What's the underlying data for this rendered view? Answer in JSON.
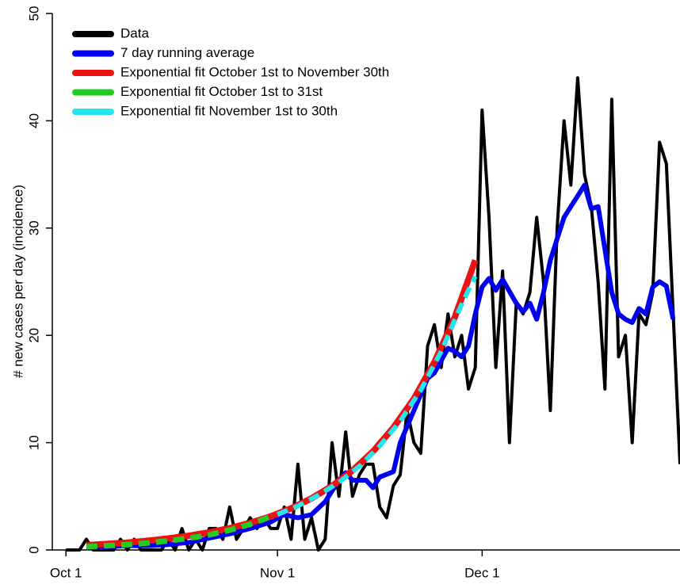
{
  "chart_data": {
    "type": "line",
    "y_label": "# new cases per day (incidence)",
    "xlim": [
      -2,
      90
    ],
    "xticks": [
      {
        "value": 0,
        "label": "Oct 1"
      },
      {
        "value": 31,
        "label": "Nov 1"
      },
      {
        "value": 61,
        "label": "Dec 1"
      }
    ],
    "ylim": [
      0,
      50
    ],
    "yticks": [
      0,
      10,
      20,
      30,
      40,
      50
    ],
    "grid": false,
    "legend": "top-left",
    "series": [
      {
        "name": "Data",
        "color": "#000000",
        "style": "solid",
        "x": [
          0,
          1,
          2,
          3,
          4,
          5,
          6,
          7,
          8,
          9,
          10,
          11,
          12,
          13,
          14,
          15,
          16,
          17,
          18,
          19,
          20,
          21,
          22,
          23,
          24,
          25,
          26,
          27,
          28,
          29,
          30,
          31,
          32,
          33,
          34,
          35,
          36,
          37,
          38,
          39,
          40,
          41,
          42,
          43,
          44,
          45,
          46,
          47,
          48,
          49,
          50,
          51,
          52,
          53,
          54,
          55,
          56,
          57,
          58,
          59,
          60,
          61,
          62,
          63,
          64,
          65,
          66,
          67,
          68,
          69,
          70,
          71,
          72,
          73,
          74,
          75,
          76,
          77,
          78,
          79,
          80,
          81,
          82,
          83,
          84,
          85,
          86,
          87,
          88,
          89,
          90
        ],
        "values": [
          0,
          0,
          0,
          1,
          0,
          0,
          0,
          0,
          1,
          0,
          1,
          0,
          0,
          0,
          0,
          1,
          0,
          2,
          0,
          1,
          0,
          2,
          2,
          1,
          4,
          1,
          2,
          3,
          2,
          3,
          2,
          2,
          4,
          1,
          8,
          1,
          3,
          0,
          1,
          10,
          5,
          11,
          5,
          7,
          8,
          8,
          4,
          3,
          6,
          7,
          13,
          10,
          9,
          19,
          21,
          17,
          22,
          18,
          20,
          15,
          17,
          41,
          31,
          17,
          26,
          10,
          23,
          22,
          24,
          31,
          25,
          13,
          30,
          40,
          34,
          44,
          35,
          32,
          25,
          15,
          42,
          18,
          20,
          10,
          22,
          21,
          24,
          38,
          36,
          22,
          8
        ]
      },
      {
        "name": "7 day running average",
        "color": "#0000ee",
        "style": "solid",
        "x": [
          3,
          6,
          9,
          12,
          15,
          18,
          21,
          24,
          27,
          30,
          32,
          34,
          36,
          38,
          40,
          41,
          42,
          44,
          45,
          46,
          48,
          49,
          51,
          53,
          54,
          56,
          57,
          58,
          59,
          60,
          61,
          62,
          63,
          64,
          66,
          67,
          68,
          69,
          70,
          71,
          72,
          73,
          74,
          75,
          76,
          77,
          78,
          79,
          80,
          81,
          82,
          83,
          84,
          85,
          86,
          87,
          88,
          89
        ],
        "values": [
          0.2,
          0.3,
          0.4,
          0.4,
          0.5,
          0.7,
          1.1,
          1.5,
          2,
          2.6,
          3.3,
          3,
          3.3,
          4.5,
          6.5,
          7.2,
          6.5,
          6.5,
          5.8,
          6.8,
          7.3,
          10,
          13,
          16,
          16.5,
          18.8,
          18.5,
          18,
          19,
          22,
          24.5,
          25.3,
          24.2,
          25.2,
          23,
          22.2,
          23,
          21.5,
          24,
          27,
          29,
          31,
          32,
          33,
          34,
          31.8,
          32,
          28,
          24,
          22,
          21.5,
          21.2,
          22.5,
          22,
          24.5,
          25,
          24.6,
          21.5
        ]
      },
      {
        "name": "Exponential fit October 1st to November 30th",
        "color": "#ee1111",
        "style": "solid",
        "x": [
          3,
          6,
          9,
          12,
          15,
          18,
          21,
          24,
          27,
          30,
          33,
          36,
          39,
          42,
          45,
          48,
          51,
          54,
          57,
          60
        ],
        "values": [
          0.45,
          0.56,
          0.69,
          0.86,
          1.07,
          1.32,
          1.64,
          2.03,
          2.52,
          3.13,
          3.88,
          4.81,
          5.97,
          7.4,
          9.18,
          11.4,
          14.1,
          17.5,
          21.7,
          27
        ]
      },
      {
        "name": "Exponential fit October 1st to 31st",
        "color": "#22cc22",
        "style": "dashed",
        "x": [
          3,
          6,
          9,
          12,
          15,
          18,
          21,
          24,
          27,
          30
        ],
        "values": [
          0.3,
          0.4,
          0.5,
          0.65,
          0.85,
          1.1,
          1.4,
          1.85,
          2.4,
          3.1
        ]
      },
      {
        "name": "Exponential fit November 1st to 30th",
        "color": "#22e5ee",
        "style": "dashed",
        "x": [
          31,
          34,
          37,
          40,
          43,
          46,
          49,
          52,
          55,
          58,
          60
        ],
        "values": [
          3.3,
          4.1,
          5.1,
          6.3,
          7.8,
          9.7,
          12,
          14.9,
          18.5,
          22.9,
          25.5
        ]
      }
    ]
  }
}
